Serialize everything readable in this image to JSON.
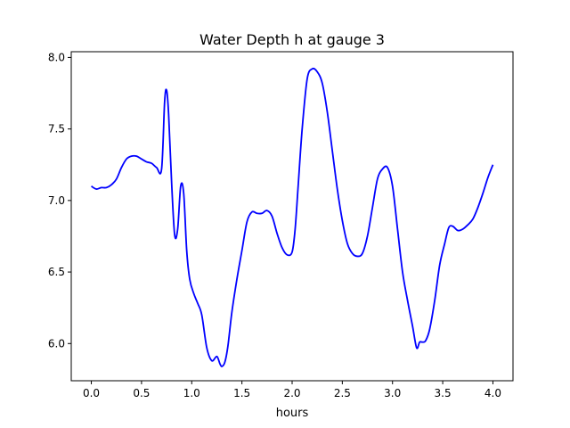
{
  "chart_data": {
    "type": "line",
    "title": "Water Depth h at gauge 3",
    "xlabel": "hours",
    "ylabel": "",
    "xlim": [
      -0.2,
      4.2
    ],
    "ylim": [
      5.74,
      8.04
    ],
    "grid": false,
    "legend": "none",
    "xticks": [
      {
        "value": 0.0,
        "label": "0.0"
      },
      {
        "value": 0.5,
        "label": "0.5"
      },
      {
        "value": 1.0,
        "label": "1.0"
      },
      {
        "value": 1.5,
        "label": "1.5"
      },
      {
        "value": 2.0,
        "label": "2.0"
      },
      {
        "value": 2.5,
        "label": "2.5"
      },
      {
        "value": 3.0,
        "label": "3.0"
      },
      {
        "value": 3.5,
        "label": "3.5"
      },
      {
        "value": 4.0,
        "label": "4.0"
      }
    ],
    "yticks": [
      {
        "value": 6.0,
        "label": "6.0"
      },
      {
        "value": 6.5,
        "label": "6.5"
      },
      {
        "value": 7.0,
        "label": "7.0"
      },
      {
        "value": 7.5,
        "label": "7.5"
      },
      {
        "value": 8.0,
        "label": "8.0"
      }
    ],
    "series": [
      {
        "color": "#0000ff",
        "x": [
          0.0,
          0.05,
          0.1,
          0.15,
          0.2,
          0.25,
          0.3,
          0.35,
          0.4,
          0.45,
          0.5,
          0.55,
          0.6,
          0.65,
          0.7,
          0.73,
          0.75,
          0.77,
          0.8,
          0.83,
          0.86,
          0.89,
          0.92,
          0.95,
          0.98,
          1.02,
          1.06,
          1.1,
          1.15,
          1.2,
          1.25,
          1.28,
          1.3,
          1.33,
          1.36,
          1.4,
          1.45,
          1.5,
          1.55,
          1.6,
          1.65,
          1.7,
          1.75,
          1.8,
          1.85,
          1.9,
          1.95,
          2.0,
          2.03,
          2.06,
          2.1,
          2.15,
          2.2,
          2.25,
          2.3,
          2.35,
          2.4,
          2.45,
          2.5,
          2.55,
          2.6,
          2.65,
          2.7,
          2.75,
          2.8,
          2.85,
          2.9,
          2.95,
          3.0,
          3.05,
          3.1,
          3.15,
          3.2,
          3.24,
          3.27,
          3.3,
          3.33,
          3.37,
          3.42,
          3.47,
          3.52,
          3.56,
          3.6,
          3.65,
          3.7,
          3.75,
          3.8,
          3.85,
          3.9,
          3.95,
          4.0
        ],
        "y": [
          7.1,
          7.08,
          7.09,
          7.09,
          7.11,
          7.15,
          7.23,
          7.29,
          7.31,
          7.31,
          7.29,
          7.27,
          7.26,
          7.23,
          7.22,
          7.69,
          7.77,
          7.6,
          7.12,
          6.76,
          6.8,
          7.1,
          7.05,
          6.65,
          6.45,
          6.35,
          6.28,
          6.2,
          5.97,
          5.88,
          5.91,
          5.86,
          5.84,
          5.87,
          5.98,
          6.22,
          6.45,
          6.65,
          6.85,
          6.92,
          6.91,
          6.91,
          6.93,
          6.89,
          6.77,
          6.67,
          6.62,
          6.64,
          6.8,
          7.1,
          7.5,
          7.85,
          7.92,
          7.9,
          7.82,
          7.62,
          7.35,
          7.08,
          6.86,
          6.7,
          6.63,
          6.61,
          6.63,
          6.75,
          6.95,
          7.15,
          7.22,
          7.23,
          7.1,
          6.8,
          6.5,
          6.3,
          6.12,
          5.97,
          6.01,
          6.01,
          6.02,
          6.1,
          6.3,
          6.55,
          6.7,
          6.81,
          6.82,
          6.79,
          6.8,
          6.83,
          6.87,
          6.95,
          7.05,
          7.16,
          7.25
        ]
      }
    ]
  }
}
